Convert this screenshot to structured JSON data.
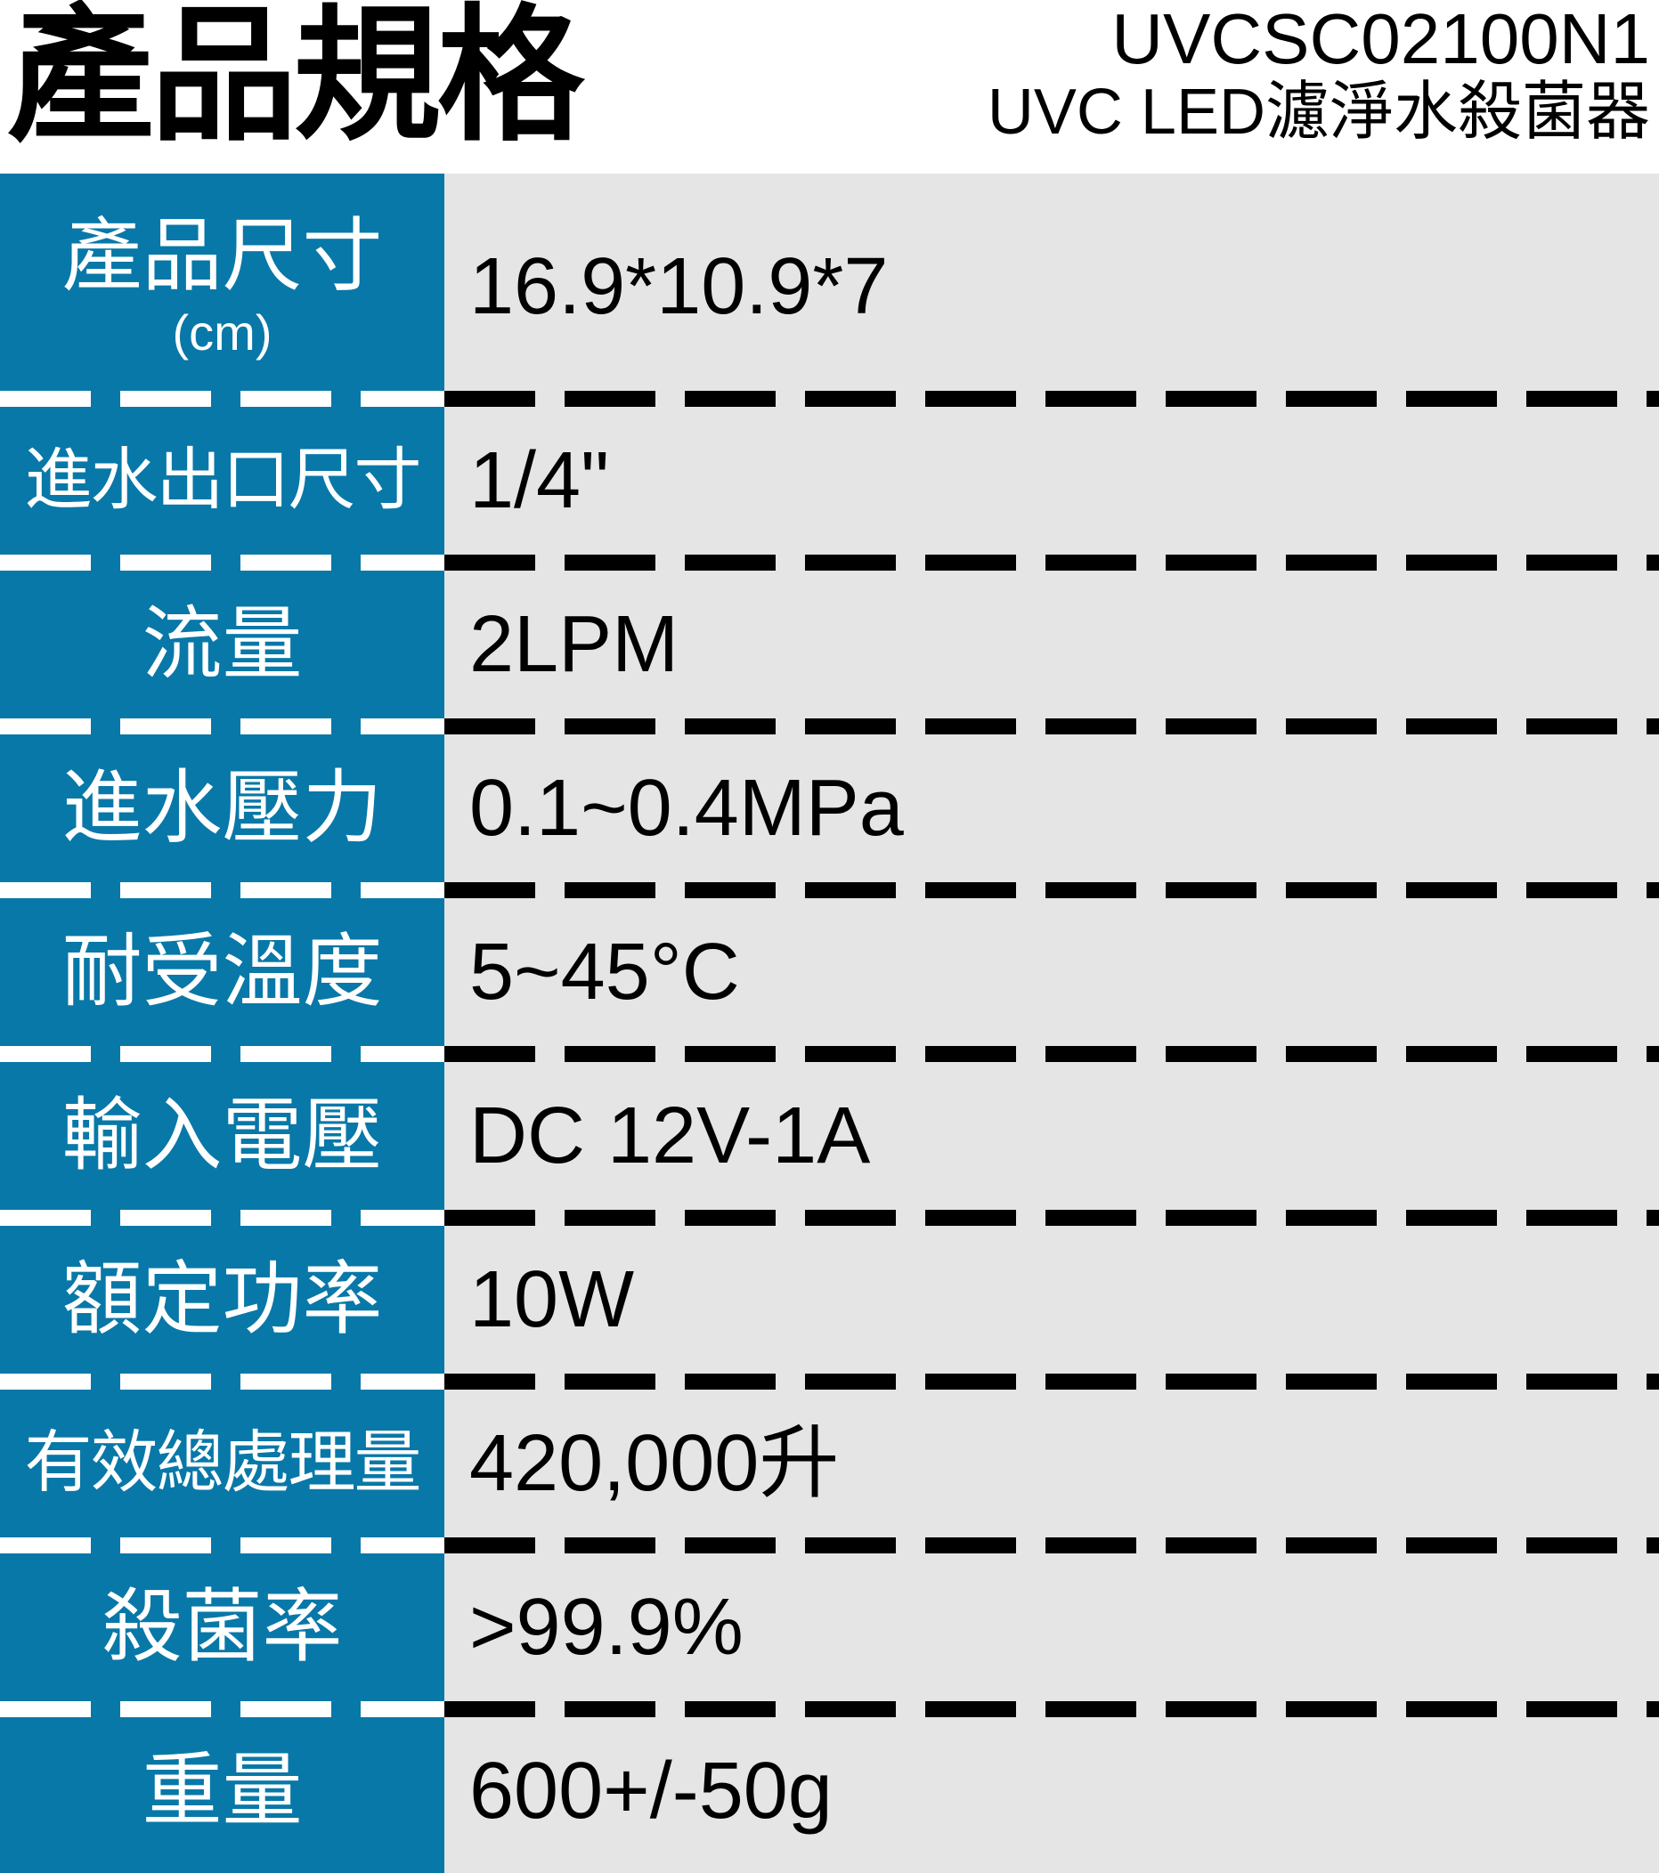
{
  "header": {
    "title": "產品規格",
    "model": "UVCSC02100N1",
    "product_name": "UVC LED濾淨水殺菌器"
  },
  "table": {
    "rows": [
      {
        "label": "產品尺寸",
        "label_sub": "(cm)",
        "value": "16.9*10.9*7"
      },
      {
        "label": "進水出口尺寸",
        "value": "1/4\""
      },
      {
        "label": "流量",
        "value": "2LPM"
      },
      {
        "label": "進水壓力",
        "value": "0.1~0.4MPa"
      },
      {
        "label": "耐受溫度",
        "value": "5~45°C"
      },
      {
        "label": "輸入電壓",
        "value": "DC 12V-1A"
      },
      {
        "label": "額定功率",
        "value": "10W"
      },
      {
        "label": "有效總處理量",
        "value": "420,000升"
      },
      {
        "label": "殺菌率",
        "value": ">99.9%"
      },
      {
        "label": "重量",
        "value": "600+/-50g"
      }
    ]
  },
  "colors": {
    "label_bg_blue": "#0878A8",
    "value_bg_gray": "#E5E5E5",
    "text_black": "#000000",
    "label_text_white": "#FFFFFF"
  }
}
